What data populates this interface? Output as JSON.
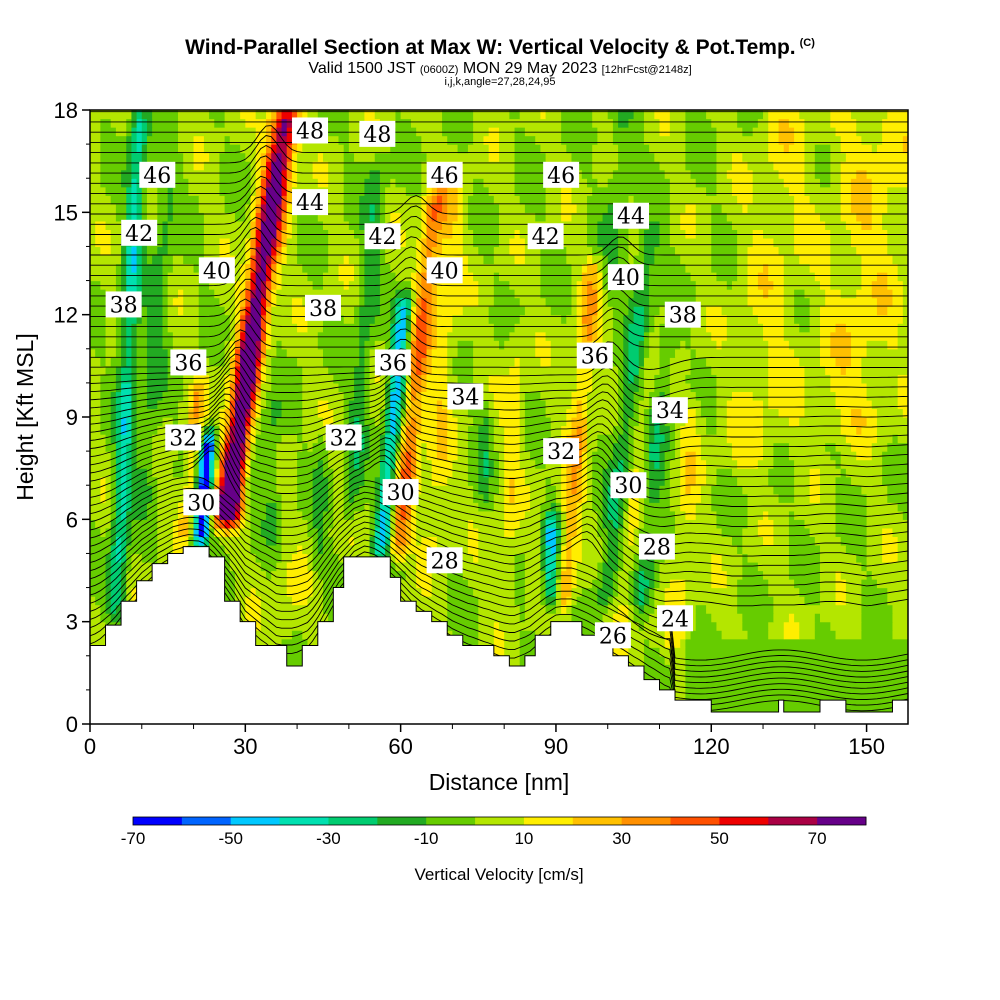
{
  "header": {
    "title": "Wind-Parallel Section at Max W: Vertical Velocity & Pot.Temp.",
    "title_mark": "(C)",
    "valid_prefix": "Valid 1500 JST",
    "valid_utc": "(0600Z)",
    "valid_date": "MON 29 May 2023",
    "forecast_info": "[12hrFcst@2148z]",
    "indices": "i,j,k,angle=27,28,24,95"
  },
  "chart_data": {
    "type": "heatmap",
    "xlabel": "Distance [nm]",
    "ylabel": "Height [Kft MSL]",
    "xlim": [
      0,
      158
    ],
    "ylim": [
      0,
      18
    ],
    "x_ticks": [
      0,
      30,
      60,
      90,
      120,
      150
    ],
    "y_ticks": [
      0,
      3,
      6,
      9,
      12,
      15,
      18
    ],
    "colorbar": {
      "title": "Vertical Velocity [cm/s]",
      "ticks": [
        -70,
        -50,
        -30,
        -10,
        10,
        30,
        50,
        70
      ],
      "levels": [
        -70,
        -60,
        -50,
        -40,
        -30,
        -20,
        -10,
        0,
        10,
        20,
        30,
        40,
        50,
        60,
        70
      ],
      "colors": [
        "#0000ff",
        "#0064ff",
        "#00c8ff",
        "#00e0b0",
        "#00cc70",
        "#22aa22",
        "#66cc00",
        "#b4e600",
        "#ffee00",
        "#ffc000",
        "#ff9000",
        "#ff5000",
        "#ee0000",
        "#aa0044",
        "#660088"
      ]
    },
    "theta_contour_labels": [
      {
        "value": "48",
        "x": 42.5,
        "y": 17.4
      },
      {
        "value": "48",
        "x": 55.5,
        "y": 17.3
      },
      {
        "value": "46",
        "x": 13,
        "y": 16.1
      },
      {
        "value": "46",
        "x": 68.5,
        "y": 16.1
      },
      {
        "value": "46",
        "x": 91,
        "y": 16.1
      },
      {
        "value": "44",
        "x": 42.5,
        "y": 15.3
      },
      {
        "value": "44",
        "x": 104.5,
        "y": 14.9
      },
      {
        "value": "42",
        "x": 9.5,
        "y": 14.4
      },
      {
        "value": "42",
        "x": 56.5,
        "y": 14.3
      },
      {
        "value": "42",
        "x": 88,
        "y": 14.3
      },
      {
        "value": "40",
        "x": 24.5,
        "y": 13.3
      },
      {
        "value": "40",
        "x": 68.5,
        "y": 13.3
      },
      {
        "value": "40",
        "x": 103.5,
        "y": 13.1
      },
      {
        "value": "38",
        "x": 6.5,
        "y": 12.3
      },
      {
        "value": "38",
        "x": 45,
        "y": 12.2
      },
      {
        "value": "38",
        "x": 114.5,
        "y": 12.0
      },
      {
        "value": "36",
        "x": 19,
        "y": 10.6
      },
      {
        "value": "36",
        "x": 58.5,
        "y": 10.6
      },
      {
        "value": "36",
        "x": 97.5,
        "y": 10.8
      },
      {
        "value": "34",
        "x": 72.5,
        "y": 9.6
      },
      {
        "value": "34",
        "x": 112,
        "y": 9.2
      },
      {
        "value": "32",
        "x": 18,
        "y": 8.4
      },
      {
        "value": "32",
        "x": 49,
        "y": 8.4
      },
      {
        "value": "32",
        "x": 91,
        "y": 8.0
      },
      {
        "value": "30",
        "x": 21.5,
        "y": 6.5
      },
      {
        "value": "30",
        "x": 60,
        "y": 6.8
      },
      {
        "value": "30",
        "x": 104,
        "y": 7.0
      },
      {
        "value": "28",
        "x": 68.5,
        "y": 4.8
      },
      {
        "value": "28",
        "x": 109.5,
        "y": 5.2
      },
      {
        "value": "26",
        "x": 101,
        "y": 2.6
      },
      {
        "value": "24",
        "x": 113,
        "y": 3.1
      }
    ]
  }
}
